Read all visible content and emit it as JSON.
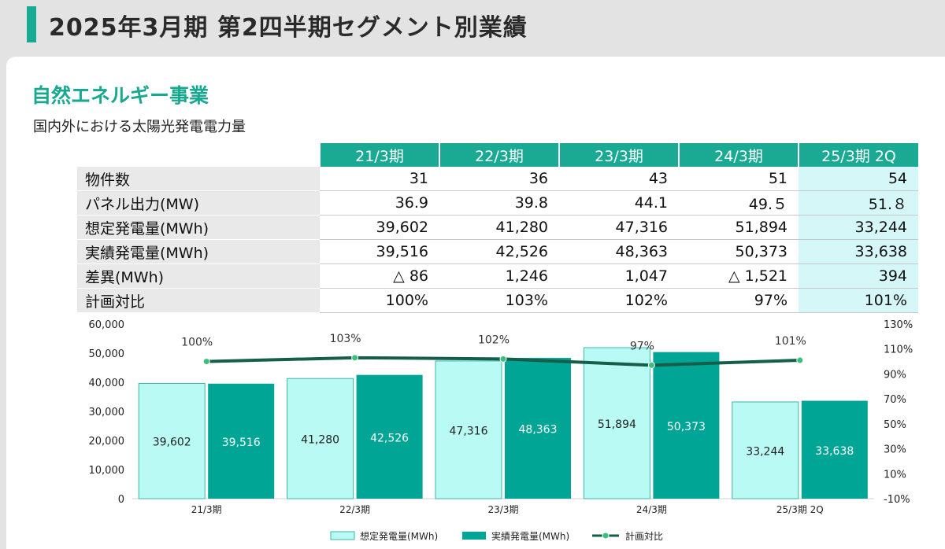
{
  "title": "2025年3月期  第2四半期セグメント別業績",
  "section": "自然エネルギー事業",
  "subtitle": "国内外における太陽光発電電力量",
  "table": {
    "columns": [
      "21/3期",
      "22/3期",
      "23/3期",
      "24/3期",
      "25/3期 2Q"
    ],
    "rows": [
      {
        "label": "物件数",
        "values": [
          "31",
          "36",
          "43",
          "51",
          "54"
        ]
      },
      {
        "label": "パネル出力(MW)",
        "values": [
          "36.9",
          "39.8",
          "44.1",
          "49.５",
          "51.８"
        ]
      },
      {
        "label": "想定発電量(MWh)",
        "values": [
          "39,602",
          "41,280",
          "47,316",
          "51,894",
          "33,244"
        ]
      },
      {
        "label": "実績発電量(MWh)",
        "values": [
          "39,516",
          "42,526",
          "48,363",
          "50,373",
          "33,638"
        ]
      },
      {
        "label": "差異(MWh)",
        "values": [
          "△ 86",
          "1,246",
          "1,047",
          "△ 1,521",
          "394"
        ]
      },
      {
        "label": "計画対比",
        "values": [
          "100%",
          "103%",
          "102%",
          "97%",
          "101%"
        ]
      }
    ]
  },
  "colors": {
    "accent": "#1aaa94",
    "planned": "#b9fbf4",
    "actual": "#00a595",
    "ratio": "#155e4a"
  },
  "chart_data": {
    "type": "bar",
    "categories": [
      "21/3期",
      "22/3期",
      "23/3期",
      "24/3期",
      "25/3期 2Q"
    ],
    "series": [
      {
        "name": "想定発電量(MWh)",
        "type": "bar",
        "values": [
          39602,
          41280,
          47316,
          51894,
          33244
        ],
        "labels": [
          "39,602",
          "41,280",
          "47,316",
          "51,894",
          "33,244"
        ]
      },
      {
        "name": "実績発電量(MWh)",
        "type": "bar",
        "values": [
          39516,
          42526,
          48363,
          50373,
          33638
        ],
        "labels": [
          "39,516",
          "42,526",
          "48,363",
          "50,373",
          "33,638"
        ]
      },
      {
        "name": "計画対比",
        "type": "line",
        "axis": "right",
        "values": [
          100,
          103,
          102,
          97,
          101
        ],
        "labels": [
          "100%",
          "103%",
          "102%",
          "97%",
          "101%"
        ]
      }
    ],
    "ylim": [
      0,
      60000
    ],
    "yticks": [
      "0",
      "10,000",
      "20,000",
      "30,000",
      "40,000",
      "50,000",
      "60,000"
    ],
    "y2lim": [
      -10,
      130
    ],
    "y2ticks": [
      "-10%",
      "10%",
      "30%",
      "50%",
      "70%",
      "90%",
      "110%",
      "130%"
    ],
    "legend": "bottom",
    "grid": false
  }
}
